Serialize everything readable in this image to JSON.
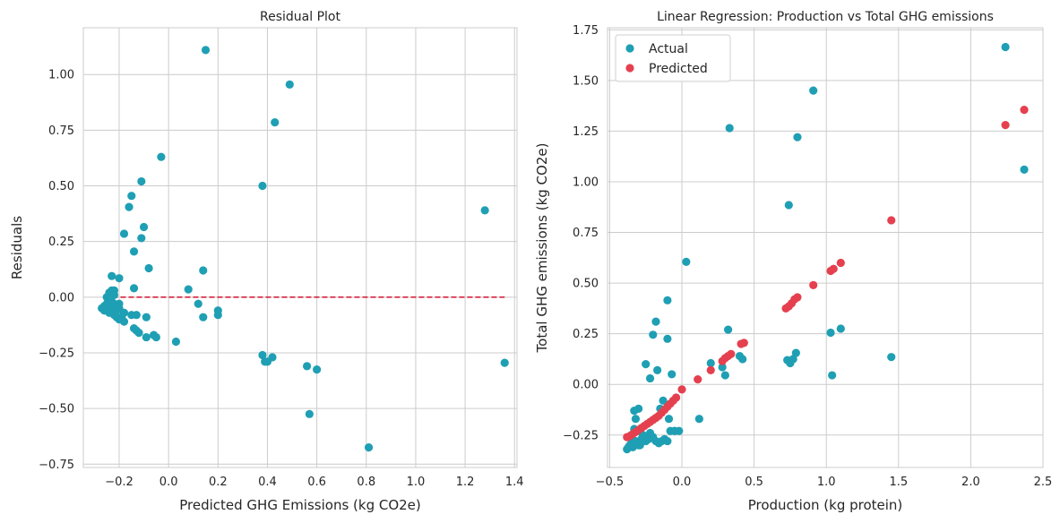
{
  "chart_data": [
    {
      "type": "scatter",
      "title": "Residual Plot",
      "xlabel": "Predicted GHG Emissions (kg CO2e)",
      "ylabel": "Residuals",
      "xlim": [
        -0.345,
        1.41
      ],
      "ylim": [
        -0.765,
        1.21
      ],
      "xticks": [
        -0.2,
        0.0,
        0.2,
        0.4,
        0.6,
        0.8,
        1.0,
        1.2,
        1.4
      ],
      "xtick_labels": [
        "−0.2",
        "0.0",
        "0.2",
        "0.4",
        "0.6",
        "0.8",
        "1.0",
        "1.2",
        "1.4"
      ],
      "yticks": [
        -0.75,
        -0.5,
        -0.25,
        0.0,
        0.25,
        0.5,
        0.75,
        1.0
      ],
      "ytick_labels": [
        "−0.75",
        "−0.50",
        "−0.25",
        "0.00",
        "0.25",
        "0.50",
        "0.75",
        "1.00"
      ],
      "grid": true,
      "zero_line": {
        "x_start": -0.26,
        "x_end": 1.36,
        "y": 0,
        "color": "#d6243f",
        "style": "dashed"
      },
      "series": [
        {
          "color": "#1f9fb4",
          "points": [
            [
              -0.27,
              -0.05
            ],
            [
              -0.26,
              -0.04
            ],
            [
              -0.26,
              -0.06
            ],
            [
              -0.25,
              -0.05
            ],
            [
              -0.25,
              -0.03
            ],
            [
              -0.25,
              0.0
            ],
            [
              -0.24,
              -0.04
            ],
            [
              -0.24,
              -0.07
            ],
            [
              -0.24,
              0.02
            ],
            [
              -0.23,
              0.03
            ],
            [
              -0.23,
              -0.06
            ],
            [
              -0.23,
              -0.02
            ],
            [
              -0.22,
              -0.03
            ],
            [
              -0.22,
              0.03
            ],
            [
              -0.22,
              0.01
            ],
            [
              -0.22,
              -0.08
            ],
            [
              -0.21,
              -0.06
            ],
            [
              -0.21,
              -0.09
            ],
            [
              -0.2,
              -0.1
            ],
            [
              -0.2,
              -0.05
            ],
            [
              -0.19,
              -0.09
            ],
            [
              -0.18,
              -0.11
            ],
            [
              -0.18,
              -0.07
            ],
            [
              -0.23,
              0.095
            ],
            [
              -0.2,
              0.085
            ],
            [
              -0.21,
              -0.04
            ],
            [
              -0.2,
              -0.03
            ],
            [
              -0.18,
              0.285
            ],
            [
              -0.16,
              0.405
            ],
            [
              -0.15,
              0.455
            ],
            [
              -0.14,
              0.205
            ],
            [
              -0.14,
              0.04
            ],
            [
              -0.14,
              -0.14
            ],
            [
              -0.13,
              -0.15
            ],
            [
              -0.12,
              -0.16
            ],
            [
              -0.15,
              -0.08
            ],
            [
              -0.13,
              -0.08
            ],
            [
              -0.11,
              0.52
            ],
            [
              -0.11,
              0.265
            ],
            [
              -0.1,
              0.315
            ],
            [
              -0.09,
              -0.18
            ],
            [
              -0.09,
              -0.09
            ],
            [
              -0.08,
              0.13
            ],
            [
              -0.06,
              -0.17
            ],
            [
              -0.05,
              -0.18
            ],
            [
              -0.03,
              0.63
            ],
            [
              0.03,
              -0.2
            ],
            [
              0.08,
              0.035
            ],
            [
              0.12,
              -0.03
            ],
            [
              0.14,
              -0.09
            ],
            [
              0.14,
              0.12
            ],
            [
              0.15,
              1.11
            ],
            [
              0.2,
              -0.06
            ],
            [
              0.2,
              -0.08
            ],
            [
              0.38,
              0.5
            ],
            [
              0.38,
              -0.26
            ],
            [
              0.39,
              -0.29
            ],
            [
              0.4,
              -0.29
            ],
            [
              0.42,
              -0.27
            ],
            [
              0.43,
              0.785
            ],
            [
              0.49,
              0.955
            ],
            [
              0.56,
              -0.31
            ],
            [
              0.57,
              -0.525
            ],
            [
              0.6,
              -0.325
            ],
            [
              0.81,
              -0.675
            ],
            [
              1.28,
              0.39
            ],
            [
              1.36,
              -0.295
            ]
          ]
        }
      ]
    },
    {
      "type": "scatter",
      "title": "Linear Regression: Production vs Total GHG emissions",
      "xlabel": "Production (kg protein)",
      "ylabel": "Total GHG emissions (kg CO2e)",
      "xlim": [
        -0.515,
        2.5
      ],
      "ylim": [
        -0.41,
        1.76
      ],
      "xticks": [
        -0.5,
        0.0,
        0.5,
        1.0,
        1.5,
        2.0,
        2.5
      ],
      "xtick_labels": [
        "−0.5",
        "0.0",
        "0.5",
        "1.0",
        "1.5",
        "2.0",
        "2.5"
      ],
      "yticks": [
        -0.25,
        0.0,
        0.25,
        0.5,
        0.75,
        1.0,
        1.25,
        1.5,
        1.75
      ],
      "ytick_labels": [
        "−0.25",
        "0.00",
        "0.25",
        "0.50",
        "0.75",
        "1.00",
        "1.25",
        "1.50",
        "1.75"
      ],
      "grid": true,
      "legend": "top-left",
      "series": [
        {
          "name": "Actual",
          "color": "#1f9fb4",
          "points": [
            [
              -0.38,
              -0.32
            ],
            [
              -0.37,
              -0.31
            ],
            [
              -0.36,
              -0.3
            ],
            [
              -0.35,
              -0.29
            ],
            [
              -0.34,
              -0.31
            ],
            [
              -0.33,
              -0.3
            ],
            [
              -0.32,
              -0.28
            ],
            [
              -0.31,
              -0.29
            ],
            [
              -0.3,
              -0.3
            ],
            [
              -0.29,
              -0.3
            ],
            [
              -0.28,
              -0.28
            ],
            [
              -0.27,
              -0.25
            ],
            [
              -0.35,
              -0.25
            ],
            [
              -0.33,
              -0.22
            ],
            [
              -0.32,
              -0.17
            ],
            [
              -0.33,
              -0.13
            ],
            [
              -0.3,
              -0.12
            ],
            [
              -0.28,
              -0.27
            ],
            [
              -0.25,
              -0.28
            ],
            [
              -0.23,
              -0.27
            ],
            [
              -0.22,
              -0.24
            ],
            [
              -0.2,
              -0.26
            ],
            [
              -0.18,
              -0.28
            ],
            [
              -0.16,
              -0.29
            ],
            [
              -0.14,
              -0.28
            ],
            [
              -0.12,
              -0.27
            ],
            [
              -0.1,
              -0.28
            ],
            [
              -0.08,
              -0.23
            ],
            [
              -0.05,
              -0.23
            ],
            [
              -0.25,
              0.1
            ],
            [
              -0.22,
              0.03
            ],
            [
              -0.2,
              0.245
            ],
            [
              -0.18,
              0.31
            ],
            [
              -0.17,
              0.07
            ],
            [
              -0.15,
              -0.12
            ],
            [
              -0.13,
              -0.08
            ],
            [
              -0.1,
              0.415
            ],
            [
              -0.1,
              0.225
            ],
            [
              -0.09,
              -0.17
            ],
            [
              -0.07,
              0.05
            ],
            [
              -0.05,
              -0.23
            ],
            [
              -0.02,
              -0.23
            ],
            [
              0.03,
              0.605
            ],
            [
              0.12,
              -0.17
            ],
            [
              0.2,
              0.105
            ],
            [
              0.28,
              0.085
            ],
            [
              0.3,
              0.045
            ],
            [
              0.32,
              0.27
            ],
            [
              0.33,
              1.265
            ],
            [
              0.4,
              0.14
            ],
            [
              0.42,
              0.125
            ],
            [
              0.73,
              0.12
            ],
            [
              0.74,
              0.885
            ],
            [
              0.75,
              0.105
            ],
            [
              0.77,
              0.125
            ],
            [
              0.79,
              0.155
            ],
            [
              0.8,
              1.22
            ],
            [
              0.91,
              1.45
            ],
            [
              1.03,
              0.255
            ],
            [
              1.04,
              0.045
            ],
            [
              1.1,
              0.275
            ],
            [
              1.45,
              0.135
            ],
            [
              2.24,
              1.665
            ],
            [
              2.37,
              1.06
            ]
          ]
        },
        {
          "name": "Predicted",
          "color": "#e5404f",
          "points": [
            [
              -0.38,
              -0.26
            ],
            [
              -0.36,
              -0.255
            ],
            [
              -0.34,
              -0.245
            ],
            [
              -0.32,
              -0.235
            ],
            [
              -0.3,
              -0.225
            ],
            [
              -0.28,
              -0.215
            ],
            [
              -0.26,
              -0.205
            ],
            [
              -0.24,
              -0.195
            ],
            [
              -0.22,
              -0.185
            ],
            [
              -0.2,
              -0.175
            ],
            [
              -0.18,
              -0.165
            ],
            [
              -0.16,
              -0.155
            ],
            [
              -0.14,
              -0.14
            ],
            [
              -0.12,
              -0.125
            ],
            [
              -0.1,
              -0.11
            ],
            [
              -0.08,
              -0.095
            ],
            [
              -0.06,
              -0.08
            ],
            [
              -0.04,
              -0.065
            ],
            [
              0.0,
              -0.025
            ],
            [
              0.11,
              0.025
            ],
            [
              0.2,
              0.07
            ],
            [
              0.28,
              0.115
            ],
            [
              0.3,
              0.13
            ],
            [
              0.32,
              0.14
            ],
            [
              0.34,
              0.15
            ],
            [
              0.41,
              0.2
            ],
            [
              0.43,
              0.205
            ],
            [
              0.72,
              0.375
            ],
            [
              0.74,
              0.385
            ],
            [
              0.76,
              0.4
            ],
            [
              0.78,
              0.42
            ],
            [
              0.8,
              0.43
            ],
            [
              0.91,
              0.49
            ],
            [
              1.03,
              0.56
            ],
            [
              1.05,
              0.57
            ],
            [
              1.1,
              0.6
            ],
            [
              1.45,
              0.81
            ],
            [
              2.24,
              1.28
            ],
            [
              2.37,
              1.355
            ]
          ]
        }
      ]
    }
  ]
}
